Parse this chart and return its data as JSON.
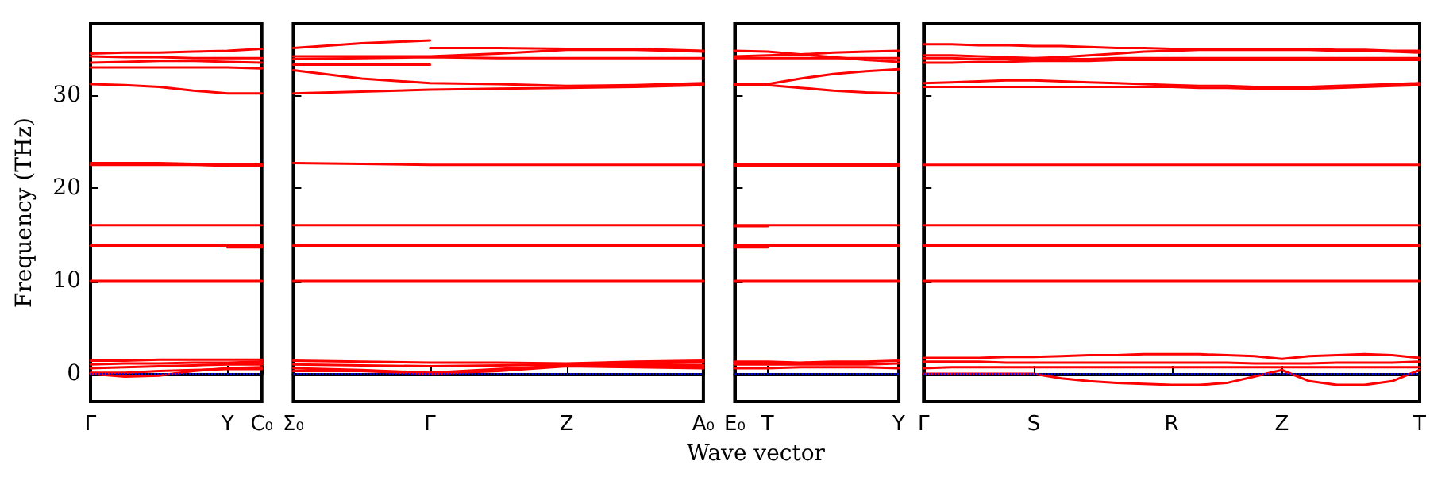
{
  "chart_data": [
    {
      "type": "line",
      "ylabel": "Frequency (THz)",
      "ylim": [
        -3,
        37.7
      ],
      "yticks": [
        0,
        10,
        20,
        30
      ],
      "categories": [
        "Γ",
        null,
        null,
        null,
        "Y",
        "C₀"
      ],
      "ref_lines": [
        {
          "axis": "y",
          "value": 0,
          "color": "#0000ff",
          "line_style": "dotted"
        }
      ],
      "series": [
        {
          "color": "#ff0000",
          "values": [
            34.5,
            34.6,
            34.6,
            34.7,
            34.8,
            35.0
          ]
        },
        {
          "color": "#ff0000",
          "values": [
            34.2,
            34.1,
            34.1,
            34.0,
            34.0,
            34.0
          ]
        },
        {
          "color": "#ff0000",
          "values": [
            33.5,
            33.6,
            33.7,
            33.7,
            33.6,
            33.5
          ]
        },
        {
          "color": "#ff0000",
          "values": [
            33.0,
            33.0,
            33.0,
            33.0,
            33.0,
            32.9
          ]
        },
        {
          "color": "#ff0000",
          "values": [
            31.2,
            31.1,
            30.9,
            30.5,
            30.2,
            30.2
          ]
        },
        {
          "color": "#ff0000",
          "values": [
            22.7,
            22.7,
            22.7,
            22.6,
            22.6,
            22.6
          ]
        },
        {
          "color": "#ff0000",
          "values": [
            22.5,
            22.5,
            22.5,
            22.5,
            22.4,
            22.4
          ]
        },
        {
          "color": "#ff0000",
          "values": [
            16.0,
            16.0,
            16.0,
            16.0,
            16.0,
            16.0
          ]
        },
        {
          "color": "#ff0000",
          "values": [
            13.8,
            13.8,
            13.8,
            13.8,
            13.8,
            13.8
          ]
        },
        {
          "color": "#ff0000",
          "values": [
            null,
            null,
            null,
            null,
            13.6,
            13.6
          ]
        },
        {
          "color": "#ff0000",
          "values": [
            10.0,
            10.0,
            10.0,
            10.0,
            10.0,
            10.0
          ]
        },
        {
          "color": "#ff0000",
          "values": [
            1.4,
            1.4,
            1.5,
            1.5,
            1.5,
            1.5
          ]
        },
        {
          "color": "#ff0000",
          "values": [
            1.0,
            1.1,
            1.1,
            1.2,
            1.2,
            1.3
          ]
        },
        {
          "color": "#ff0000",
          "values": [
            0.6,
            0.7,
            0.8,
            0.9,
            1.0,
            1.0
          ]
        },
        {
          "color": "#ff0000",
          "values": [
            0.0,
            -0.3,
            -0.2,
            0.3,
            0.6,
            0.7
          ]
        },
        {
          "color": "#ff0000",
          "values": [
            0.1,
            0.1,
            0.3,
            0.4,
            0.5,
            0.5
          ]
        }
      ]
    },
    {
      "type": "line",
      "ylim": [
        -3,
        37.7
      ],
      "yticks": [
        0,
        10,
        20,
        30
      ],
      "tick_labels": "x",
      "categories": [
        "Σ₀",
        null,
        "Γ",
        null,
        "Z",
        null,
        "A₀"
      ],
      "ref_lines": [
        {
          "axis": "y",
          "value": 0,
          "color": "#0000ff",
          "line_style": "dotted"
        }
      ],
      "series": [
        {
          "color": "#ff0000",
          "values": [
            35.1,
            35.6,
            35.9,
            null,
            null,
            null,
            null
          ]
        },
        {
          "color": "#ff0000",
          "values": [
            33.3,
            33.3,
            33.3,
            null,
            null,
            null,
            null
          ]
        },
        {
          "color": "#ff0000",
          "values": [
            32.7,
            31.8,
            31.3,
            31.2,
            31.0,
            31.1,
            31.3
          ]
        },
        {
          "color": "#ff0000",
          "values": [
            34.2,
            34.2,
            34.2,
            34.5,
            34.9,
            34.9,
            34.7
          ]
        },
        {
          "color": "#ff0000",
          "values": [
            33.9,
            34.0,
            34.1,
            34.0,
            34.0,
            34.0,
            34.0
          ]
        },
        {
          "color": "#ff0000",
          "values": [
            null,
            null,
            35.1,
            35.1,
            35.0,
            35.0,
            34.8
          ]
        },
        {
          "color": "#ff0000",
          "values": [
            30.2,
            30.4,
            30.6,
            30.7,
            30.8,
            30.9,
            31.1
          ]
        },
        {
          "color": "#ff0000",
          "values": [
            22.7,
            22.6,
            22.5,
            22.5,
            22.5,
            22.5,
            22.5
          ]
        },
        {
          "color": "#ff0000",
          "values": [
            16.0,
            16.0,
            16.0,
            16.0,
            16.0,
            16.0,
            16.0
          ]
        },
        {
          "color": "#ff0000",
          "values": [
            13.8,
            13.8,
            13.8,
            13.8,
            13.8,
            13.8,
            13.8
          ]
        },
        {
          "color": "#ff0000",
          "values": [
            10.0,
            10.0,
            10.0,
            10.0,
            10.0,
            10.0,
            10.0
          ]
        },
        {
          "color": "#ff0000",
          "values": [
            1.4,
            1.3,
            1.2,
            1.2,
            1.1,
            1.3,
            1.4
          ]
        },
        {
          "color": "#ff0000",
          "values": [
            1.0,
            0.9,
            0.8,
            0.9,
            1.0,
            1.1,
            1.2
          ]
        },
        {
          "color": "#ff0000",
          "values": [
            0.6,
            0.4,
            0.1,
            0.5,
            0.9,
            0.9,
            0.9
          ]
        },
        {
          "color": "#ff0000",
          "values": [
            0.3,
            0.3,
            0.0,
            0.3,
            0.8,
            0.7,
            0.6
          ]
        }
      ]
    },
    {
      "type": "line",
      "xlabel": "Wave vector",
      "ylim": [
        -3,
        37.7
      ],
      "yticks": [
        0,
        10,
        20,
        30
      ],
      "tick_labels": "x",
      "categories": [
        "E₀",
        "T",
        null,
        null,
        null,
        "Y"
      ],
      "ref_lines": [
        {
          "axis": "y",
          "value": 0,
          "color": "#0000ff",
          "line_style": "dotted"
        }
      ],
      "series": [
        {
          "color": "#ff0000",
          "values": [
            34.8,
            34.7,
            34.4,
            34.1,
            33.8,
            33.6
          ]
        },
        {
          "color": "#ff0000",
          "values": [
            34.2,
            34.3,
            34.4,
            34.6,
            34.7,
            34.8
          ]
        },
        {
          "color": "#ff0000",
          "values": [
            34.0,
            34.0,
            34.0,
            34.0,
            34.0,
            34.0
          ]
        },
        {
          "color": "#ff0000",
          "values": [
            31.2,
            31.2,
            31.8,
            32.3,
            32.6,
            32.8
          ]
        },
        {
          "color": "#ff0000",
          "values": [
            31.1,
            31.1,
            30.8,
            30.5,
            30.3,
            30.2
          ]
        },
        {
          "color": "#ff0000",
          "values": [
            22.6,
            22.6,
            22.6,
            22.6,
            22.6,
            22.6
          ]
        },
        {
          "color": "#ff0000",
          "values": [
            22.4,
            22.4,
            22.4,
            22.4,
            22.4,
            22.4
          ]
        },
        {
          "color": "#ff0000",
          "values": [
            15.9,
            15.9,
            null,
            null,
            null,
            null
          ]
        },
        {
          "color": "#ff0000",
          "values": [
            16.0,
            16.0,
            16.0,
            16.0,
            16.0,
            16.0
          ]
        },
        {
          "color": "#ff0000",
          "values": [
            13.6,
            13.6,
            null,
            null,
            null,
            null
          ]
        },
        {
          "color": "#ff0000",
          "values": [
            13.8,
            13.8,
            13.8,
            13.8,
            13.8,
            13.8
          ]
        },
        {
          "color": "#ff0000",
          "values": [
            10.0,
            10.0,
            10.0,
            10.0,
            10.0,
            10.0
          ]
        },
        {
          "color": "#ff0000",
          "values": [
            1.3,
            1.3,
            1.2,
            1.3,
            1.3,
            1.4
          ]
        },
        {
          "color": "#ff0000",
          "values": [
            1.0,
            1.0,
            1.0,
            1.0,
            1.0,
            1.1
          ]
        },
        {
          "color": "#ff0000",
          "values": [
            0.6,
            0.6,
            0.7,
            0.7,
            0.7,
            0.6
          ]
        }
      ]
    },
    {
      "type": "line",
      "ylim": [
        -3,
        37.7
      ],
      "yticks": [
        0,
        10,
        20,
        30
      ],
      "tick_labels": "x",
      "categories": [
        "Γ",
        null,
        null,
        null,
        "S",
        null,
        null,
        null,
        null,
        "R",
        null,
        null,
        null,
        "Z",
        null,
        null,
        null,
        null,
        "T"
      ],
      "ref_lines": [
        {
          "axis": "y",
          "value": 0,
          "color": "#0000ff",
          "line_style": "dotted"
        }
      ],
      "series": [
        {
          "color": "#ff0000",
          "values": [
            35.5,
            35.5,
            35.4,
            35.4,
            35.3,
            35.3,
            35.2,
            35.1,
            35.1,
            35.0,
            35.0,
            35.0,
            35.0,
            35.0,
            35.0,
            34.9,
            34.9,
            34.8,
            34.8
          ]
        },
        {
          "color": "#ff0000",
          "values": [
            34.3,
            34.3,
            34.2,
            34.1,
            34.0,
            34.1,
            34.3,
            34.5,
            34.7,
            34.8,
            34.9,
            34.9,
            34.9,
            34.9,
            34.9,
            34.8,
            34.8,
            34.7,
            34.6
          ]
        },
        {
          "color": "#ff0000",
          "values": [
            34.0,
            34.0,
            33.9,
            33.9,
            33.8,
            33.9,
            33.9,
            34.0,
            34.0,
            34.0,
            34.0,
            34.0,
            34.0,
            34.0,
            34.0,
            34.0,
            34.0,
            34.0,
            34.0
          ]
        },
        {
          "color": "#ff0000",
          "values": [
            33.5,
            33.5,
            33.6,
            33.6,
            33.7,
            33.7,
            33.7,
            33.8,
            33.8,
            33.8,
            33.8,
            33.8,
            33.8,
            33.8,
            33.8,
            33.8,
            33.8,
            33.8,
            33.8
          ]
        },
        {
          "color": "#ff0000",
          "values": [
            31.3,
            31.4,
            31.5,
            31.6,
            31.6,
            31.5,
            31.4,
            31.3,
            31.2,
            31.1,
            31.0,
            31.0,
            30.9,
            30.9,
            30.9,
            31.0,
            31.1,
            31.2,
            31.3
          ]
        },
        {
          "color": "#ff0000",
          "values": [
            30.9,
            30.9,
            30.9,
            30.9,
            30.9,
            30.9,
            30.9,
            30.9,
            30.9,
            30.9,
            30.8,
            30.8,
            30.7,
            30.7,
            30.7,
            30.8,
            30.9,
            31.0,
            31.1
          ]
        },
        {
          "color": "#ff0000",
          "values": [
            22.5,
            22.5,
            22.5,
            22.5,
            22.5,
            22.5,
            22.5,
            22.5,
            22.5,
            22.5,
            22.5,
            22.5,
            22.5,
            22.5,
            22.5,
            22.5,
            22.5,
            22.5,
            22.5
          ]
        },
        {
          "color": "#ff0000",
          "values": [
            16.0,
            16.0,
            16.0,
            16.0,
            16.0,
            16.0,
            16.0,
            16.0,
            16.0,
            16.0,
            16.0,
            16.0,
            16.0,
            16.0,
            16.0,
            16.0,
            16.0,
            16.0,
            16.0
          ]
        },
        {
          "color": "#ff0000",
          "values": [
            13.8,
            13.8,
            13.8,
            13.8,
            13.8,
            13.8,
            13.8,
            13.8,
            13.8,
            13.8,
            13.8,
            13.8,
            13.8,
            13.8,
            13.8,
            13.8,
            13.8,
            13.8,
            13.8
          ]
        },
        {
          "color": "#ff0000",
          "values": [
            10.0,
            10.0,
            10.0,
            10.0,
            10.0,
            10.0,
            10.0,
            10.0,
            10.0,
            10.0,
            10.0,
            10.0,
            10.0,
            10.0,
            10.0,
            10.0,
            10.0,
            10.0,
            10.0
          ]
        },
        {
          "color": "#ff0000",
          "values": [
            1.7,
            1.7,
            1.7,
            1.8,
            1.8,
            1.9,
            2.0,
            2.0,
            2.1,
            2.1,
            2.1,
            2.0,
            1.9,
            1.6,
            1.9,
            2.0,
            2.1,
            2.0,
            1.7
          ]
        },
        {
          "color": "#ff0000",
          "values": [
            1.3,
            1.3,
            1.3,
            1.2,
            1.2,
            1.2,
            1.2,
            1.2,
            1.2,
            1.2,
            1.2,
            1.2,
            1.1,
            1.1,
            1.1,
            1.2,
            1.2,
            1.2,
            1.3
          ]
        },
        {
          "color": "#ff0000",
          "values": [
            0.6,
            0.7,
            0.7,
            0.7,
            0.7,
            0.7,
            0.7,
            0.7,
            0.7,
            0.7,
            0.7,
            0.7,
            0.7,
            0.7,
            0.7,
            0.7,
            0.7,
            0.7,
            0.7
          ]
        },
        {
          "color": "#ff0000",
          "values": [
            0.0,
            0.0,
            0.0,
            0.0,
            0.0,
            -0.5,
            -0.8,
            -1.0,
            -1.1,
            -1.2,
            -1.2,
            -1.0,
            -0.3,
            0.4,
            -0.8,
            -1.2,
            -1.2,
            -0.8,
            0.4
          ]
        }
      ]
    }
  ]
}
